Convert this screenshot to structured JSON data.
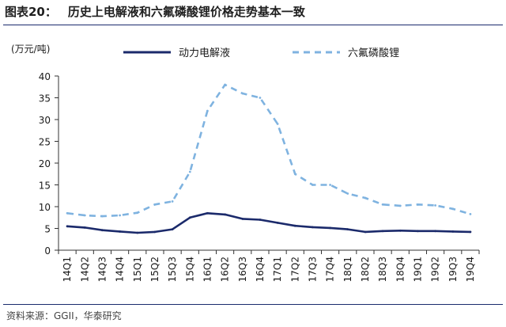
{
  "figure": {
    "label": "图表20：",
    "title": "历史上电解液和六氟磷酸锂价格走势基本一致"
  },
  "source": "资料来源：GGII，华泰研究",
  "chart_data": {
    "type": "line",
    "unit_label": "(万元/吨)",
    "categories": [
      "14Q1",
      "14Q2",
      "14Q3",
      "14Q4",
      "15Q1",
      "15Q2",
      "15Q3",
      "15Q4",
      "16Q1",
      "16Q2",
      "16Q3",
      "16Q4",
      "17Q1",
      "17Q2",
      "17Q3",
      "17Q4",
      "18Q1",
      "18Q2",
      "18Q3",
      "18Q4",
      "19Q1",
      "19Q2",
      "19Q3",
      "19Q4"
    ],
    "ylim": [
      0,
      40
    ],
    "yticks": [
      0,
      5,
      10,
      15,
      20,
      25,
      30,
      35,
      40
    ],
    "grid": false,
    "legend_position": "top",
    "series": [
      {
        "name": "动力电解液",
        "style": "solid",
        "color": "#1b2a6b",
        "values": [
          5.5,
          5.2,
          4.6,
          4.3,
          4.0,
          4.2,
          4.8,
          7.5,
          8.5,
          8.2,
          7.2,
          7.0,
          6.3,
          5.6,
          5.3,
          5.1,
          4.8,
          4.2,
          4.4,
          4.5,
          4.4,
          4.4,
          4.3,
          4.2
        ]
      },
      {
        "name": "六氟磷酸锂",
        "style": "dashed",
        "color": "#7fb3e0",
        "values": [
          8.5,
          8.0,
          7.8,
          8.0,
          8.6,
          10.5,
          11.2,
          18.0,
          32.0,
          38.0,
          36.0,
          35.0,
          29.0,
          17.5,
          15.0,
          15.0,
          13.0,
          12.0,
          10.5,
          10.2,
          10.5,
          10.3,
          9.5,
          8.3
        ]
      }
    ]
  }
}
